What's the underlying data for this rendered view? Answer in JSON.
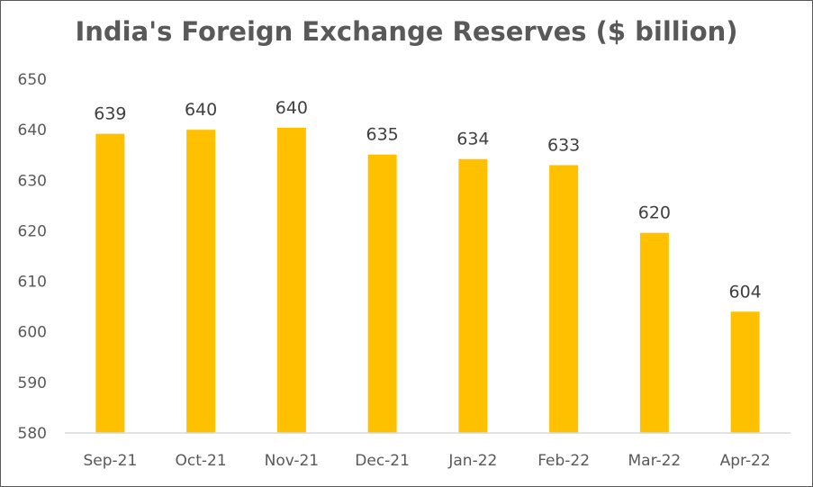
{
  "chart_data": {
    "type": "bar",
    "title": "India's Foreign Exchange Reserves ($ billion)",
    "categories": [
      "Sep-21",
      "Oct-21",
      "Nov-21",
      "Dec-21",
      "Jan-22",
      "Feb-22",
      "Mar-22",
      "Apr-22"
    ],
    "values": [
      639.2,
      640.0,
      640.4,
      635.1,
      634.2,
      633.0,
      619.6,
      604.0
    ],
    "data_labels": [
      "639",
      "640",
      "640",
      "635",
      "634",
      "633",
      "620",
      "604"
    ],
    "ylim": [
      580,
      650
    ],
    "yticks": [
      580,
      590,
      600,
      610,
      620,
      630,
      640,
      650
    ],
    "xlabel": "",
    "ylabel": "",
    "grid": false,
    "legend": "none",
    "bar_color": "#FFC000",
    "axis_color": "#D9D9D9",
    "text_color": "#595959"
  }
}
